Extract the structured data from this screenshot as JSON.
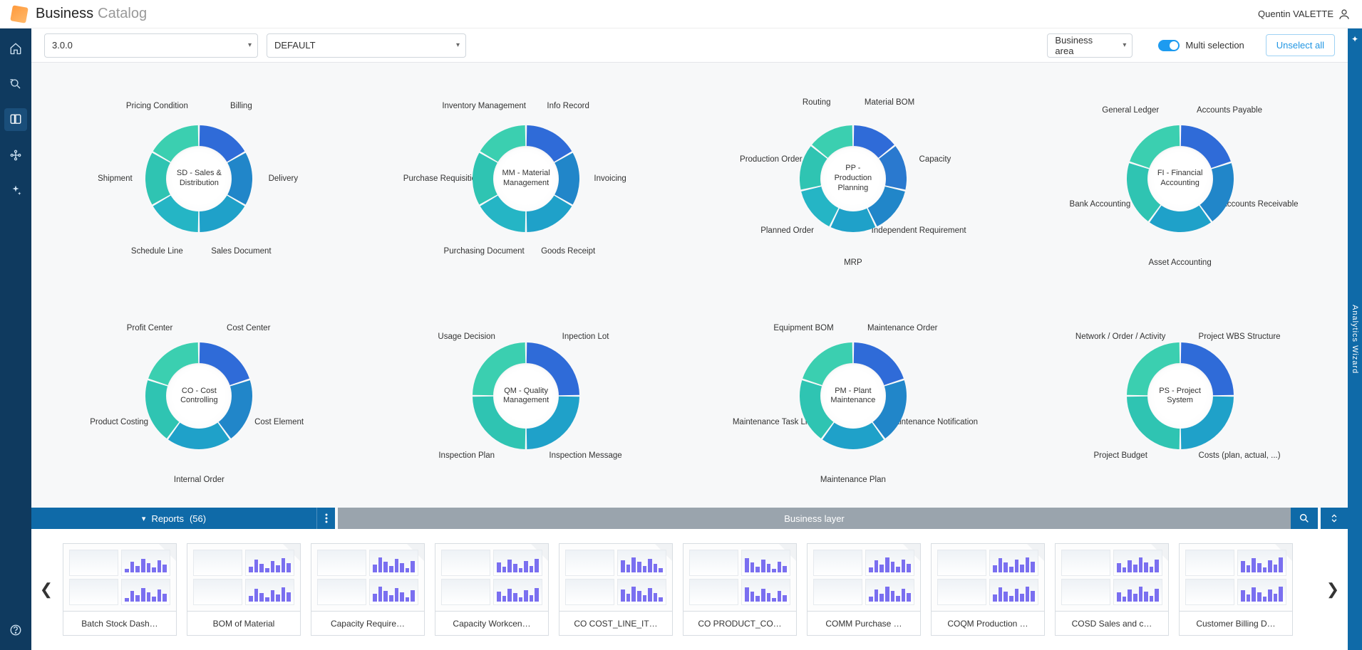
{
  "header": {
    "title_a": "Business",
    "title_b": "Catalog",
    "user": "Quentin VALETTE"
  },
  "toolbar": {
    "version": "3.0.0",
    "default": "DEFAULT",
    "area": "Business area",
    "multi": "Multi selection",
    "unselect": "Unselect all"
  },
  "rightrail": "Analytics Wizard",
  "donut_geom": {
    "outer_r": 75,
    "inner_r": 44,
    "label_r": 118,
    "gap_deg": 2
  },
  "palette6": [
    "#2f6bd8",
    "#2186c9",
    "#1fa1c9",
    "#25b5c5",
    "#2fc4b2",
    "#3bcfb0"
  ],
  "palette5": [
    "#2f6bd8",
    "#2186c9",
    "#1fa1c9",
    "#2fc4b2",
    "#3bcfb0"
  ],
  "palette4": [
    "#2f6bd8",
    "#1fa1c9",
    "#2fc4b2",
    "#3bcfb0"
  ],
  "palette7": [
    "#2f6bd8",
    "#2a79cf",
    "#2186c9",
    "#1fa1c9",
    "#25b5c5",
    "#2fc4b2",
    "#3bcfb0"
  ],
  "modules": [
    {
      "id": "sd",
      "center": "SD - Sales & Distribution",
      "palette": "palette6",
      "segs": [
        "Billing",
        "Delivery",
        "Sales Document",
        "Schedule Line",
        "Shipment",
        "Pricing Condition"
      ]
    },
    {
      "id": "mm",
      "center": "MM - Material Management",
      "palette": "palette6",
      "segs": [
        "Info Record",
        "Invoicing",
        "Goods Receipt",
        "Purchasing Document",
        "Purchase Requisition",
        "Inventory Management"
      ]
    },
    {
      "id": "pp",
      "center": "PP - Production Planning",
      "palette": "palette7",
      "segs": [
        "Material BOM",
        "Capacity",
        "Independent Requirement",
        "MRP",
        "Planned Order",
        "Production Order",
        "Routing"
      ]
    },
    {
      "id": "fi",
      "center": "FI - Financial Accounting",
      "palette": "palette5",
      "segs": [
        "Accounts Payable",
        "Accounts Receivable",
        "Asset Accounting",
        "Bank Accounting",
        "General Ledger"
      ]
    },
    {
      "id": "co",
      "center": "CO - Cost Controlling",
      "palette": "palette5",
      "segs": [
        "Cost Center",
        "Cost Element",
        "Internal Order",
        "Product Costing",
        "Profit Center"
      ]
    },
    {
      "id": "qm",
      "center": "QM - Quality Management",
      "palette": "palette4",
      "segs": [
        "Inpection Lot",
        "Inspection Message",
        "Inspection Plan",
        "Usage Decision"
      ]
    },
    {
      "id": "pm",
      "center": "PM - Plant Maintenance",
      "palette": "palette5",
      "segs": [
        "Maintenance Order",
        "Maintenance Notification",
        "Maintenance Plan",
        "Maintenance Task List",
        "Equipment BOM"
      ]
    },
    {
      "id": "ps",
      "center": "PS - Project System",
      "palette": "palette4",
      "segs": [
        "Project WBS Structure",
        "Costs (plan, actual, ...)",
        "Project Budget",
        "Network / Order / Activity"
      ]
    }
  ],
  "tabs": {
    "reports": "Reports",
    "count": "(56)",
    "layer": "Business layer"
  },
  "reports": [
    "Batch Stock Dash…",
    "BOM of Material",
    "Capacity Require…",
    "Capacity Workcen…",
    "CO COST_LINE_IT…",
    "CO PRODUCT_CO…",
    "COMM Purchase …",
    "COQM Production …",
    "COSD Sales and c…",
    "Customer Billing D…"
  ]
}
